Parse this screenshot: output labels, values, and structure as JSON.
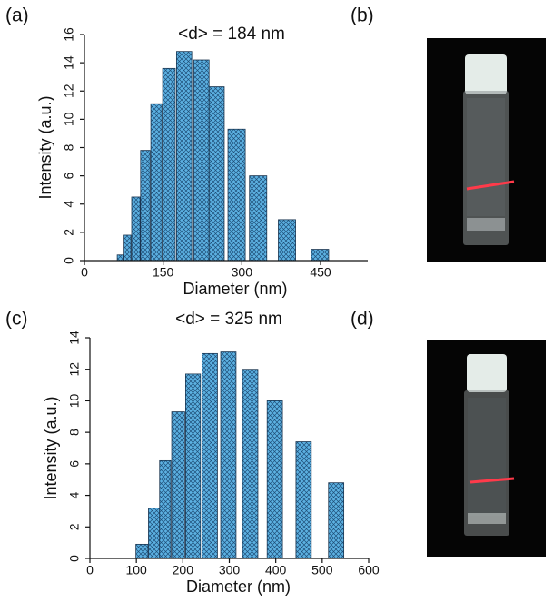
{
  "chart_data": [
    {
      "type": "bar",
      "panel": "(a)",
      "annotation": "<d> = 184 nm",
      "xlabel": "Diameter (nm)",
      "ylabel": "Intensity (a.u.)",
      "x": [
        69,
        82,
        98,
        116,
        137,
        161,
        190,
        223,
        252,
        290,
        331,
        386,
        449
      ],
      "values": [
        0.4,
        1.8,
        4.5,
        7.8,
        11.1,
        13.6,
        14.8,
        14.2,
        12.3,
        9.3,
        6.0,
        2.9,
        0.8
      ],
      "color": "#5cb1e2",
      "xlim": [
        0,
        540
      ],
      "xticks": [
        0,
        150,
        300,
        450
      ],
      "ylim": [
        0,
        16
      ],
      "yticks": [
        0,
        2,
        4,
        6,
        8,
        10,
        12,
        14,
        16
      ]
    },
    {
      "type": "bar",
      "panel": "(c)",
      "annotation": "<d> = 325 nm",
      "xlabel": "Diameter (nm)",
      "ylabel": "Intensity (a.u.)",
      "x": [
        112,
        138,
        162,
        190,
        222,
        258,
        298,
        345,
        398,
        460,
        530
      ],
      "values": [
        0.9,
        3.2,
        6.2,
        9.3,
        11.7,
        13.0,
        13.1,
        12.0,
        10.0,
        7.4,
        4.8
      ],
      "color": "#5cb1e2",
      "xlim": [
        0,
        600
      ],
      "xticks": [
        0,
        100,
        200,
        300,
        400,
        500,
        600
      ],
      "ylim": [
        0,
        14
      ],
      "yticks": [
        0,
        2,
        4,
        6,
        8,
        10,
        12,
        14
      ]
    }
  ],
  "photos": [
    {
      "panel": "(b)"
    },
    {
      "panel": "(d)"
    }
  ]
}
